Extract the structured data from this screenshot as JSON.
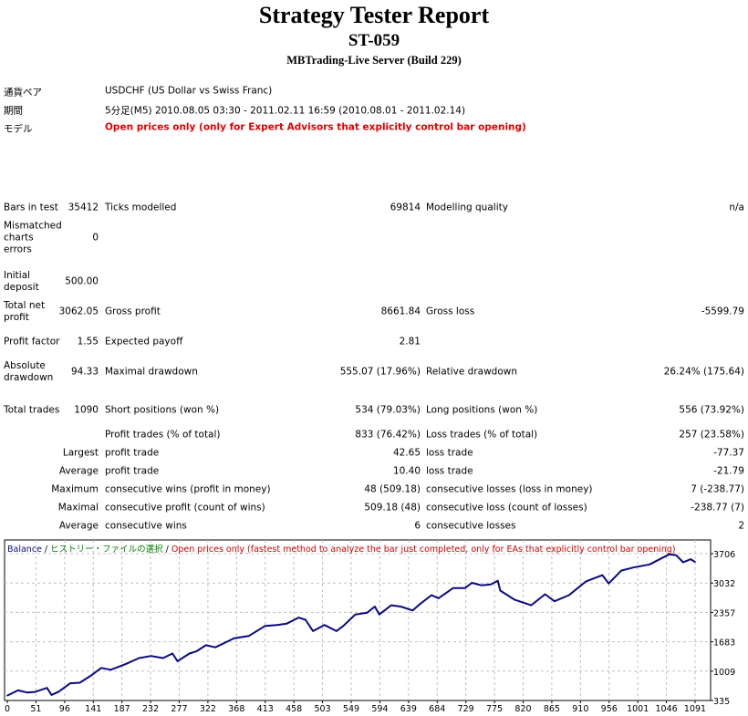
{
  "header": {
    "title": "Strategy Tester Report",
    "subtitle": "ST-059",
    "server": "MBTrading-Live Server (Build 229)"
  },
  "info": [
    {
      "label": "通貨ペア",
      "value": "USDCHF (US Dollar vs Swiss Franc)"
    },
    {
      "label": "期間",
      "value": "5分足(M5) 2010.08.05 03:30 - 2011.02.11 16:59 (2010.08.01 - 2011.02.14)"
    },
    {
      "label": "モデル",
      "value": "Open prices only (only for Expert Advisors that explicitly control bar opening)"
    }
  ],
  "stats": [
    [
      "Bars in test",
      "35412",
      "Ticks modelled",
      "69814",
      "Modelling quality",
      "n/a"
    ],
    [
      "Mismatched charts errors",
      "0",
      "",
      "",
      "",
      ""
    ],
    [
      "Initial deposit",
      "500.00",
      "",
      "",
      "",
      ""
    ],
    [
      "Total net profit",
      "3062.05",
      "Gross profit",
      "8661.84",
      "Gross loss",
      "-5599.79"
    ],
    [
      "Profit factor",
      "1.55",
      "Expected payoff",
      "2.81",
      "",
      ""
    ],
    [
      "Absolute drawdown",
      "94.33",
      "Maximal drawdown",
      "555.07 (17.96%)",
      "Relative drawdown",
      "26.24% (175.64)"
    ],
    [
      "Total trades",
      "1090",
      "Short positions (won %)",
      "534 (79.03%)",
      "Long positions (won %)",
      "556 (73.92%)"
    ],
    [
      "",
      "",
      "Profit trades (% of total)",
      "833 (76.42%)",
      "Loss trades (% of total)",
      "257 (23.58%)"
    ],
    [
      "",
      "Largest",
      "profit trade",
      "42.65",
      "loss trade",
      "-77.37"
    ],
    [
      "",
      "Average",
      "profit trade",
      "10.40",
      "loss trade",
      "-21.79"
    ],
    [
      "",
      "Maximum",
      "consecutive wins (profit in money)",
      "48 (509.18)",
      "consecutive losses (loss in money)",
      "7 (-238.77)"
    ],
    [
      "",
      "Maximal",
      "consecutive profit (count of wins)",
      "509.18 (48)",
      "consecutive loss (count of losses)",
      "-238.77 (7)"
    ],
    [
      "",
      "Average",
      "consecutive wins",
      "6",
      "consecutive losses",
      "2"
    ]
  ],
  "chart_data": {
    "type": "line",
    "legend": {
      "series": "Balance",
      "sep": " / ",
      "history": "ヒストリー・ファイルの選択",
      "model": "Open prices only (fastest method to analyze the bar just completed, only for EAs that explicitly control bar opening)"
    },
    "colors": {
      "line": "#0a0a80",
      "history": "#008000",
      "model": "#cc0000",
      "grid": "#c0c0c0"
    },
    "ylim": [
      335,
      3706
    ],
    "yticks": [
      "3706",
      "3032",
      "2357",
      "1683",
      "1009",
      "335"
    ],
    "xlim": [
      0,
      1091
    ],
    "xticks": [
      "0",
      "51",
      "96",
      "141",
      "187",
      "232",
      "277",
      "322",
      "368",
      "413",
      "458",
      "503",
      "549",
      "594",
      "639",
      "684",
      "729",
      "775",
      "820",
      "865",
      "910",
      "956",
      "1001",
      "1046",
      "1091"
    ],
    "x": [
      0,
      17,
      32,
      44,
      63,
      70,
      81,
      100,
      115,
      134,
      149,
      164,
      187,
      209,
      228,
      247,
      262,
      270,
      289,
      300,
      315,
      330,
      360,
      383,
      409,
      428,
      443,
      462,
      473,
      485,
      503,
      522,
      533,
      552,
      571,
      583,
      590,
      609,
      624,
      643,
      654,
      673,
      684,
      707,
      726,
      737,
      752,
      767,
      778,
      782,
      805,
      831,
      853,
      868,
      891,
      918,
      944,
      954,
      974,
      993,
      1019,
      1050,
      1061,
      1072,
      1084,
      1091
    ],
    "y": [
      448,
      568,
      518,
      532,
      624,
      462,
      532,
      730,
      744,
      920,
      1082,
      1040,
      1167,
      1308,
      1357,
      1308,
      1414,
      1237,
      1414,
      1463,
      1604,
      1555,
      1766,
      1816,
      2048,
      2069,
      2098,
      2238,
      2189,
      1928,
      2069,
      1928,
      2048,
      2309,
      2351,
      2492,
      2309,
      2520,
      2492,
      2401,
      2542,
      2753,
      2683,
      2915,
      2915,
      3035,
      2979,
      3000,
      3085,
      2859,
      2647,
      2520,
      2774,
      2612,
      2753,
      3070,
      3211,
      3021,
      3317,
      3388,
      3458,
      3691,
      3670,
      3508,
      3578,
      3515
    ]
  }
}
